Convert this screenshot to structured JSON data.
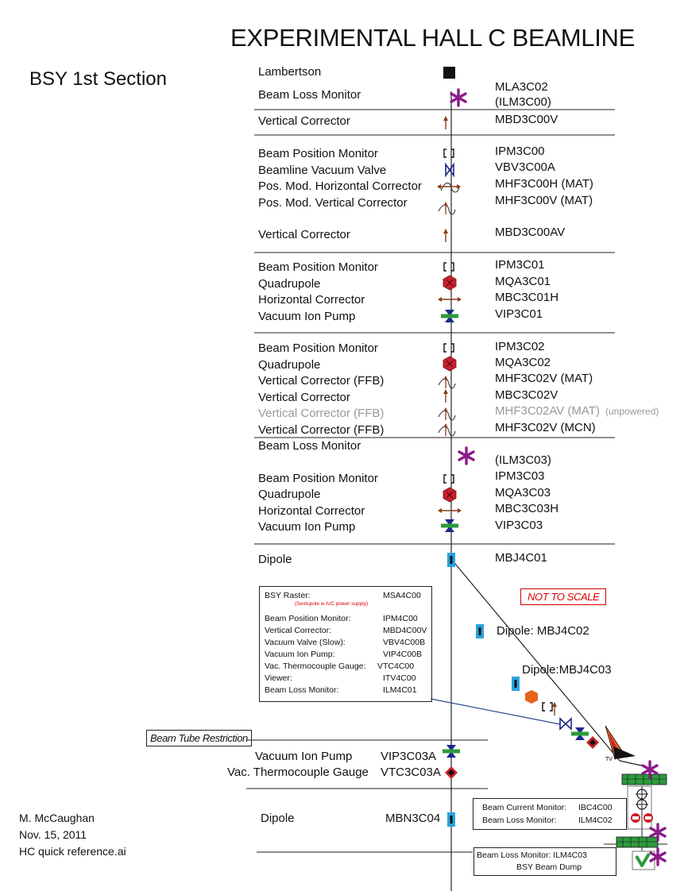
{
  "title": "EXPERIMENTAL HALL C BEAMLINE",
  "section": "BSY 1st Section",
  "author": {
    "name": "M. McCaughan",
    "date": "Nov. 15, 2011",
    "file": "HC quick reference.ai"
  },
  "labels": {
    "lambertson": "Lambertson",
    "blm1": "Beam Loss Monitor",
    "vc1": "Vertical Corrector",
    "bpm1": "Beam Position Monitor",
    "valve1": "Beamline Vacuum Valve",
    "pmh": "Pos. Mod. Horizontal Corrector",
    "pmv": "Pos. Mod. Vertical Corrector",
    "vc2": "Vertical Corrector",
    "bpm2": "Beam Position Monitor",
    "quad2": "Quadrupole",
    "hc2": "Horizontal Corrector",
    "vip2": "Vacuum Ion Pump",
    "bpm3": "Beam Position Monitor",
    "quad3": "Quadrupole",
    "vcffb1": "Vertical Corrector (FFB)",
    "vc3": "Vertical Corrector",
    "vcffb2": "Vertical Corrector (FFB)",
    "vcffb3": "Vertical Corrector (FFB)",
    "blm4": "Beam Loss Monitor",
    "bpm4": "Beam Position Monitor",
    "quad4": "Quadrupole",
    "hc4": "Horizontal Corrector",
    "vip4": "Vacuum Ion Pump",
    "dipole1": "Dipole",
    "vip5": "Vacuum Ion Pump",
    "tc5": "Vac. Thermocouple Gauge",
    "dipole2": "Dipole"
  },
  "codes": {
    "mla": "MLA3C02",
    "ilm00": "(ILM3C00)",
    "mbd00v": "MBD3C00V",
    "ipm00": "IPM3C00",
    "vbv": "VBV3C00A",
    "mhf00h": "MHF3C00H (MAT)",
    "mhf00v": "MHF3C00V (MAT)",
    "mbd00av": "MBD3C00AV",
    "ipm01": "IPM3C01",
    "mqa01": "MQA3C01",
    "mbc01h": "MBC3C01H",
    "vip01": "VIP3C01",
    "ipm02": "IPM3C02",
    "mqa02": "MQA3C02",
    "mhf02v": "MHF3C02V (MAT)",
    "mbc02v": "MBC3C02V",
    "mhf02av": "MHF3C02AV (MAT)",
    "unpowered": "(unpowered)",
    "mhf02vmcn": "MHF3C02V (MCN)",
    "ilm03": "(ILM3C03)",
    "ipm03": "IPM3C03",
    "mqa03": "MQA3C03",
    "mbc03h": "MBC3C03H",
    "vip03": "VIP3C03",
    "mbj01": "MBJ4C01",
    "vip03a": "VIP3C03A",
    "vtc03a": "VTC3C03A",
    "mbn04": "MBN3C04"
  },
  "diag": {
    "dip2": "Dipole: MBJ4C02",
    "dip3": "Dipole:MBJ4C03",
    "not_to_scale": "NOT TO SCALE",
    "beam_tube": "Beam Tube Restriction",
    "tv": "TV"
  },
  "raster_box": {
    "rows": [
      {
        "label": "BSY Raster:",
        "code": "MSA4C00"
      },
      {
        "label": "Beam Position Monitor:",
        "code": "IPM4C00"
      },
      {
        "label": "Vertical Corrector:",
        "code": "MBD4C00V"
      },
      {
        "label": "Vacuum Valve (Slow):",
        "code": "VBV4C00B"
      },
      {
        "label": "Vacuum Ion Pump:",
        "code": "VIP4C00B"
      },
      {
        "label": "Vac. Thermocouple Gauge:",
        "code": "VTC4C00"
      },
      {
        "label": "Viewer:",
        "code": "ITV4C00"
      },
      {
        "label": "Beam Loss Monitor:",
        "code": "ILM4C01"
      }
    ],
    "note": "(Sextupole w A/C power supply)"
  },
  "bcm_box": {
    "rows": [
      {
        "label": "Beam Current Monitor:",
        "code": "IBC4C00"
      },
      {
        "label": "Beam Loss Monitor:",
        "code": "ILM4C02"
      }
    ]
  },
  "dump_box": {
    "line1": "Beam Loss Monitor: ILM4C03",
    "line2": "BSY Beam Dump"
  },
  "colors": {
    "magenta": "#8b1a8b",
    "corrector": "#8a3a1a",
    "quad": "#c8202a",
    "pump_green": "#2e9a3e",
    "navy": "#1a2a8a",
    "dipole_blue": "#29a3dd",
    "gray_text": "#999999",
    "red_text": "#d00000"
  },
  "icons": [
    "lambertson-square-icon",
    "beam-loss-star-icon",
    "corrector-arrow-icon",
    "bpm-bracket-icon",
    "valve-bowtie-icon",
    "quadrupole-hexagon-icon",
    "ion-pump-icon",
    "dipole-icon",
    "thermocouple-diamond-icon",
    "viewer-flame-icon",
    "beam-dump-icon"
  ]
}
